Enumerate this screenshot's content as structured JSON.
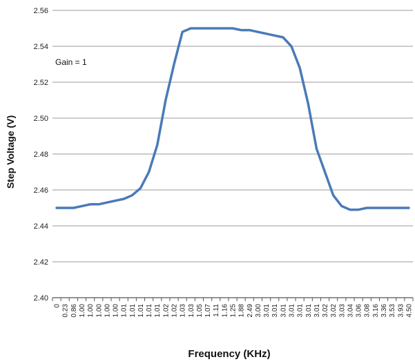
{
  "chart_data": {
    "type": "line",
    "xlabel": "Frequency (KHz)",
    "ylabel": "Step Voltage (V)",
    "annotation": "Gain = 1",
    "ylim": [
      2.4,
      2.56
    ],
    "y_ticks": [
      "2.40",
      "2.42",
      "2.44",
      "2.46",
      "2.48",
      "2.50",
      "2.52",
      "2.54",
      "2.56"
    ],
    "grid": "horizontal",
    "line_color": "#4a7ab8",
    "categories": [
      "0",
      "0.23",
      "0.86",
      "1.00",
      "1.00",
      "1.00",
      "1.00",
      "1.00",
      "1.01",
      "1.01",
      "1.01",
      "1.01",
      "1.01",
      "1.02",
      "1.02",
      "1.03",
      "1.03",
      "1.05",
      "1.07",
      "1.11",
      "1.16",
      "1.25",
      "1.88",
      "2.49",
      "3.00",
      "3.01",
      "3.01",
      "3.01",
      "3.01",
      "3.01",
      "3.01",
      "3.01",
      "3.02",
      "3.02",
      "3.03",
      "3.04",
      "3.06",
      "3.08",
      "3.16",
      "3.36",
      "3.53",
      "3.93",
      "4.50"
    ],
    "values": [
      2.45,
      2.45,
      2.45,
      2.451,
      2.452,
      2.452,
      2.453,
      2.454,
      2.455,
      2.457,
      2.461,
      2.47,
      2.485,
      2.51,
      2.53,
      2.548,
      2.55,
      2.55,
      2.55,
      2.55,
      2.55,
      2.55,
      2.549,
      2.549,
      2.548,
      2.547,
      2.546,
      2.545,
      2.54,
      2.528,
      2.508,
      2.483,
      2.47,
      2.457,
      2.451,
      2.449,
      2.449,
      2.45,
      2.45,
      2.45,
      2.45,
      2.45,
      2.45
    ]
  }
}
